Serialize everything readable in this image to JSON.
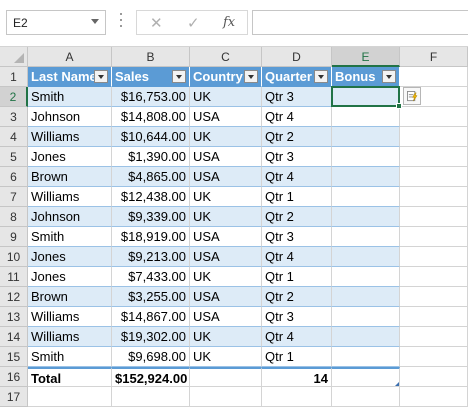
{
  "formula_bar": {
    "name_box": "E2",
    "cancel_glyph": "✕",
    "enter_glyph": "✓",
    "fx_glyph": "fx",
    "formula": ""
  },
  "column_headers": [
    "A",
    "B",
    "C",
    "D",
    "E",
    "F"
  ],
  "row_headers": [
    "1",
    "2",
    "3",
    "4",
    "5",
    "6",
    "7",
    "8",
    "9",
    "10",
    "11",
    "12",
    "13",
    "14",
    "15",
    "16",
    "17"
  ],
  "table": {
    "headers": [
      "Last Name",
      "Sales",
      "Country",
      "Quarter",
      "Bonus"
    ],
    "rows": [
      [
        "Smith",
        "$16,753.00",
        "UK",
        "Qtr 3",
        ""
      ],
      [
        "Johnson",
        "$14,808.00",
        "USA",
        "Qtr 4",
        ""
      ],
      [
        "Williams",
        "$10,644.00",
        "UK",
        "Qtr 2",
        ""
      ],
      [
        "Jones",
        "$1,390.00",
        "USA",
        "Qtr 3",
        ""
      ],
      [
        "Brown",
        "$4,865.00",
        "USA",
        "Qtr 4",
        ""
      ],
      [
        "Williams",
        "$12,438.00",
        "UK",
        "Qtr 1",
        ""
      ],
      [
        "Johnson",
        "$9,339.00",
        "UK",
        "Qtr 2",
        ""
      ],
      [
        "Smith",
        "$18,919.00",
        "USA",
        "Qtr 3",
        ""
      ],
      [
        "Jones",
        "$9,213.00",
        "USA",
        "Qtr 4",
        ""
      ],
      [
        "Jones",
        "$7,433.00",
        "UK",
        "Qtr 1",
        ""
      ],
      [
        "Brown",
        "$3,255.00",
        "USA",
        "Qtr 2",
        ""
      ],
      [
        "Williams",
        "$14,867.00",
        "USA",
        "Qtr 3",
        ""
      ],
      [
        "Williams",
        "$19,302.00",
        "UK",
        "Qtr 4",
        ""
      ],
      [
        "Smith",
        "$9,698.00",
        "UK",
        "Qtr 1",
        ""
      ]
    ],
    "total_row": [
      "Total",
      "$152,924.00",
      "",
      "14",
      ""
    ]
  },
  "selection": {
    "active_cell": "E2"
  },
  "icons": {
    "flash_fill": "flash-fill-options-icon",
    "filter": "filter-dropdown-icon"
  },
  "colors": {
    "header_fill": "#5b9bd5",
    "band_fill": "#ddebf7",
    "selection": "#217346"
  }
}
